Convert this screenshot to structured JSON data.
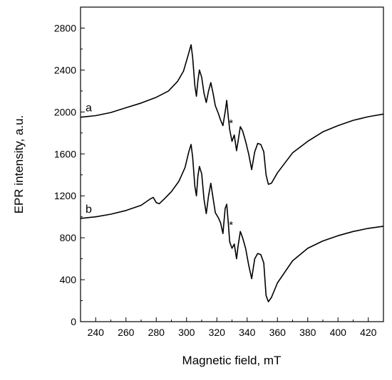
{
  "chart_data": {
    "type": "line",
    "title": "",
    "xlabel": "Magnetic field, mT",
    "ylabel": "EPR intensity, a.u.",
    "xlim": [
      230,
      430
    ],
    "ylim": [
      0,
      3000
    ],
    "x_ticks": [
      240,
      260,
      280,
      300,
      320,
      340,
      360,
      380,
      400,
      420
    ],
    "y_ticks": [
      0,
      400,
      800,
      1200,
      1600,
      2000,
      2400,
      2800
    ],
    "grid": false,
    "legend": "none",
    "line_color": "#000000",
    "series": [
      {
        "name": "a",
        "points": [
          [
            230,
            1950
          ],
          [
            240,
            1965
          ],
          [
            250,
            1995
          ],
          [
            260,
            2040
          ],
          [
            270,
            2085
          ],
          [
            280,
            2140
          ],
          [
            288,
            2200
          ],
          [
            294,
            2290
          ],
          [
            298,
            2390
          ],
          [
            301,
            2540
          ],
          [
            303,
            2640
          ],
          [
            304,
            2520
          ],
          [
            305.5,
            2250
          ],
          [
            306.5,
            2150
          ],
          [
            307.5,
            2300
          ],
          [
            308.5,
            2400
          ],
          [
            310,
            2330
          ],
          [
            311.5,
            2180
          ],
          [
            313,
            2090
          ],
          [
            314.5,
            2200
          ],
          [
            316,
            2280
          ],
          [
            317.5,
            2180
          ],
          [
            319,
            2060
          ],
          [
            321,
            1985
          ],
          [
            322.5,
            1920
          ],
          [
            324,
            1870
          ],
          [
            325.5,
            2000
          ],
          [
            326.5,
            2110
          ],
          [
            327.5,
            1960
          ],
          [
            328.5,
            1830
          ],
          [
            330,
            1720
          ],
          [
            331.5,
            1780
          ],
          [
            333,
            1630
          ],
          [
            334,
            1720
          ],
          [
            335.5,
            1860
          ],
          [
            337,
            1820
          ],
          [
            339,
            1720
          ],
          [
            341,
            1600
          ],
          [
            343,
            1450
          ],
          [
            345,
            1620
          ],
          [
            347,
            1700
          ],
          [
            349,
            1690
          ],
          [
            351,
            1620
          ],
          [
            352.5,
            1400
          ],
          [
            354,
            1310
          ],
          [
            356,
            1320
          ],
          [
            360,
            1420
          ],
          [
            370,
            1610
          ],
          [
            380,
            1720
          ],
          [
            390,
            1810
          ],
          [
            400,
            1870
          ],
          [
            410,
            1920
          ],
          [
            420,
            1955
          ],
          [
            430,
            1980
          ]
        ]
      },
      {
        "name": "b",
        "points": [
          [
            230,
            985
          ],
          [
            240,
            1000
          ],
          [
            250,
            1025
          ],
          [
            260,
            1060
          ],
          [
            270,
            1110
          ],
          [
            276,
            1170
          ],
          [
            278,
            1185
          ],
          [
            280,
            1135
          ],
          [
            282,
            1125
          ],
          [
            286,
            1180
          ],
          [
            290,
            1240
          ],
          [
            295,
            1340
          ],
          [
            299,
            1470
          ],
          [
            301.5,
            1620
          ],
          [
            303,
            1690
          ],
          [
            304,
            1570
          ],
          [
            305.5,
            1290
          ],
          [
            306.5,
            1200
          ],
          [
            307.5,
            1390
          ],
          [
            308.5,
            1480
          ],
          [
            310,
            1410
          ],
          [
            311.5,
            1170
          ],
          [
            313,
            1030
          ],
          [
            314.5,
            1200
          ],
          [
            316,
            1320
          ],
          [
            317.5,
            1180
          ],
          [
            319,
            1040
          ],
          [
            321,
            990
          ],
          [
            322.5,
            940
          ],
          [
            324,
            840
          ],
          [
            325.5,
            1080
          ],
          [
            326.5,
            1120
          ],
          [
            327.5,
            950
          ],
          [
            328.5,
            760
          ],
          [
            330,
            700
          ],
          [
            331.5,
            740
          ],
          [
            333,
            600
          ],
          [
            334,
            720
          ],
          [
            335.5,
            860
          ],
          [
            337,
            800
          ],
          [
            339,
            700
          ],
          [
            341,
            540
          ],
          [
            343,
            410
          ],
          [
            345,
            600
          ],
          [
            347,
            650
          ],
          [
            349,
            640
          ],
          [
            351,
            560
          ],
          [
            352.5,
            250
          ],
          [
            354,
            190
          ],
          [
            356,
            230
          ],
          [
            360,
            370
          ],
          [
            370,
            580
          ],
          [
            380,
            700
          ],
          [
            390,
            770
          ],
          [
            400,
            820
          ],
          [
            410,
            860
          ],
          [
            420,
            890
          ],
          [
            430,
            910
          ]
        ]
      }
    ],
    "annotations": [
      {
        "text": "*",
        "x": 328,
        "y": 1860
      },
      {
        "text": "*",
        "x": 328,
        "y": 890
      }
    ]
  }
}
